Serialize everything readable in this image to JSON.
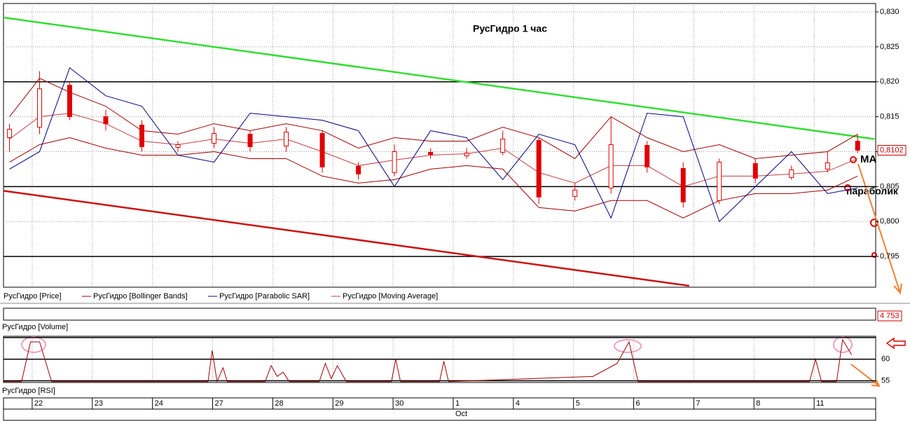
{
  "chart_data": {
    "type": "candlestick",
    "title": "РусГидро   1 час",
    "xlim": [
      -0.5,
      14
    ],
    "xticks": [
      {
        "value": 0,
        "label": "22"
      },
      {
        "value": 1,
        "label": "23"
      },
      {
        "value": 2,
        "label": "24"
      },
      {
        "value": 3,
        "label": "27"
      },
      {
        "value": 4,
        "label": "28"
      },
      {
        "value": 5,
        "label": "29"
      },
      {
        "value": 6,
        "label": "30"
      },
      {
        "value": 7,
        "label": "1"
      },
      {
        "value": 8,
        "label": "4"
      },
      {
        "value": 9,
        "label": "5"
      },
      {
        "value": 10,
        "label": "6"
      },
      {
        "value": 11,
        "label": "7"
      },
      {
        "value": 12,
        "label": "8"
      },
      {
        "value": 13,
        "label": "11"
      }
    ],
    "month_label": "Oct",
    "ylim": [
      0.7906,
      0.8312
    ],
    "yticks": [
      {
        "value": 0.795,
        "label": "0,795"
      },
      {
        "value": 0.8,
        "label": "0,800"
      },
      {
        "value": 0.805,
        "label": "0,805"
      },
      {
        "value": 0.81,
        "label": "0,810"
      },
      {
        "value": 0.815,
        "label": "0,815"
      },
      {
        "value": 0.82,
        "label": "0,820"
      },
      {
        "value": 0.825,
        "label": "0,825"
      },
      {
        "value": 0.83,
        "label": "0,830"
      }
    ],
    "grid": true,
    "x": [
      -0.4,
      0.1,
      0.6,
      1.2,
      1.8,
      2.4,
      3.0,
      3.6,
      4.2,
      4.8,
      5.4,
      6.0,
      6.6,
      7.2,
      7.8,
      8.4,
      9.0,
      9.6,
      10.2,
      10.8,
      11.4,
      12.0,
      12.6,
      13.2,
      13.7
    ],
    "price": {
      "name": "РусГидро [Price]",
      "color": "#e00000",
      "open": [
        0.812,
        0.8135,
        0.8195,
        0.815,
        0.8138,
        0.8106,
        0.8112,
        0.8125,
        0.8108,
        0.8126,
        0.8079,
        0.807,
        0.8099,
        0.8094,
        0.8099,
        0.8116,
        0.8036,
        0.8048,
        0.8109,
        0.8076,
        0.803,
        0.8083,
        0.8063,
        0.8075,
        0.8115
      ],
      "high": [
        0.814,
        0.8215,
        0.82,
        0.816,
        0.8145,
        0.8115,
        0.8135,
        0.813,
        0.8135,
        0.813,
        0.8085,
        0.811,
        0.8105,
        0.8105,
        0.813,
        0.812,
        0.8055,
        0.815,
        0.8115,
        0.8085,
        0.809,
        0.809,
        0.808,
        0.81,
        0.8125
      ],
      "low": [
        0.81,
        0.8125,
        0.8145,
        0.813,
        0.81,
        0.81,
        0.8105,
        0.81,
        0.81,
        0.807,
        0.806,
        0.8065,
        0.809,
        0.809,
        0.8095,
        0.8025,
        0.803,
        0.804,
        0.807,
        0.802,
        0.8025,
        0.8055,
        0.806,
        0.807,
        0.8098
      ],
      "close": [
        0.8132,
        0.819,
        0.815,
        0.814,
        0.8107,
        0.811,
        0.8126,
        0.8107,
        0.8128,
        0.8078,
        0.8068,
        0.81,
        0.8096,
        0.8098,
        0.8118,
        0.8035,
        0.8045,
        0.811,
        0.8078,
        0.8028,
        0.8085,
        0.8062,
        0.8074,
        0.8084,
        0.8102
      ]
    },
    "bollinger": {
      "name": "РусГидро [Bollinger Bands]",
      "color": "#a00000",
      "upper": [
        0.815,
        0.8205,
        0.8185,
        0.8165,
        0.813,
        0.8125,
        0.814,
        0.813,
        0.814,
        0.813,
        0.8105,
        0.812,
        0.8115,
        0.8115,
        0.8135,
        0.812,
        0.809,
        0.815,
        0.812,
        0.81,
        0.811,
        0.809,
        0.8095,
        0.81,
        0.8125
      ],
      "lower": [
        0.8085,
        0.811,
        0.812,
        0.8105,
        0.8095,
        0.8095,
        0.81,
        0.809,
        0.809,
        0.8065,
        0.8055,
        0.806,
        0.8075,
        0.808,
        0.8075,
        0.802,
        0.8015,
        0.803,
        0.803,
        0.8005,
        0.803,
        0.804,
        0.804,
        0.8045,
        0.8065
      ]
    },
    "sar": {
      "name": "РусГидро [Parabolic SAR]",
      "color": "#000080",
      "values": [
        0.8075,
        0.81,
        0.822,
        0.818,
        0.8165,
        0.8095,
        0.8085,
        0.8155,
        0.815,
        0.8145,
        0.813,
        0.805,
        0.813,
        0.812,
        0.806,
        0.8125,
        0.811,
        0.8005,
        0.8155,
        0.815,
        0.8,
        0.805,
        0.81,
        0.804,
        0.8048
      ]
    },
    "ma": {
      "name": "РусГидро [Moving Average]",
      "color": "#c04040",
      "values": [
        0.8118,
        0.815,
        0.8155,
        0.814,
        0.8115,
        0.811,
        0.8118,
        0.8112,
        0.8118,
        0.81,
        0.808,
        0.8088,
        0.8095,
        0.8097,
        0.8105,
        0.807,
        0.8055,
        0.808,
        0.808,
        0.805,
        0.8065,
        0.8065,
        0.8068,
        0.8072,
        0.809
      ]
    },
    "levels": [
      0.82,
      0.805,
      0.795
    ],
    "trendlines": [
      {
        "color": "#33dd33",
        "x": [
          -0.5,
          13.98
        ],
        "values": [
          0.8292,
          0.8118
        ]
      },
      {
        "color": "#cc1111",
        "x": [
          -0.5,
          10.9
        ],
        "values": [
          0.8044,
          0.7908
        ]
      }
    ],
    "last_price": {
      "value": 0.8102,
      "label": "0,8102"
    },
    "annotations": [
      "МА",
      "параболик"
    ],
    "volume": {
      "name": "РусГидро [Volume]",
      "last_label": "4 753"
    },
    "rsi": {
      "name": "РусГидро [RSI]",
      "color": "#a00000",
      "ylim": [
        54.6,
        65.3
      ],
      "yticks": [
        55,
        60
      ],
      "levels": [
        55,
        60,
        65
      ],
      "x": [
        -0.5,
        -0.2,
        -0.05,
        0.1,
        0.3,
        2.9,
        2.97,
        3.05,
        3.15,
        3.22,
        3.85,
        3.95,
        4.05,
        4.15,
        4.25,
        4.75,
        4.85,
        4.95,
        5.05,
        5.15,
        5.2,
        5.95,
        6.02,
        6.1,
        6.75,
        6.82,
        6.9,
        9.3,
        9.7,
        9.9,
        10.05,
        12.9,
        13.0,
        13.1,
        13.35,
        13.45,
        13.6
      ],
      "values": [
        54.8,
        54.8,
        64,
        64,
        54.8,
        54.8,
        62,
        54.8,
        58,
        54.8,
        54.8,
        58.5,
        56,
        57,
        54.8,
        54.8,
        59,
        55.5,
        58.5,
        56,
        54.8,
        54.8,
        60,
        54.8,
        54.8,
        59.5,
        54.8,
        56,
        59,
        64,
        54.8,
        54.8,
        60,
        54.8,
        54.8,
        64.5,
        61
      ]
    }
  }
}
